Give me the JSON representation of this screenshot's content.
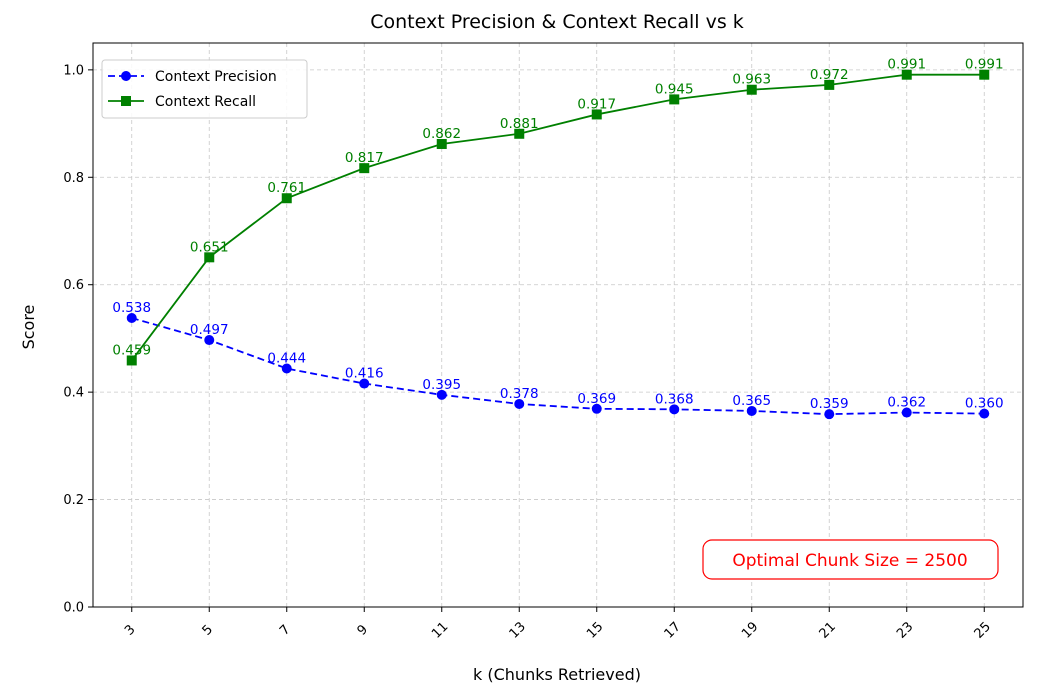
{
  "chart_data": {
    "type": "line",
    "title": "Context Precision & Context Recall vs k",
    "xlabel": "k (Chunks Retrieved)",
    "ylabel": "Score",
    "x": [
      3,
      5,
      7,
      9,
      11,
      13,
      15,
      17,
      19,
      21,
      23,
      25
    ],
    "x_tick_labels": [
      "3",
      "5",
      "7",
      "9",
      "11",
      "13",
      "15",
      "17",
      "19",
      "21",
      "23",
      "25"
    ],
    "y_tick_labels": [
      "0.0",
      "0.2",
      "0.4",
      "0.6",
      "0.8",
      "1.0"
    ],
    "y_ticks": [
      0.0,
      0.2,
      0.4,
      0.6,
      0.8,
      1.0
    ],
    "ylim": [
      0.0,
      1.05
    ],
    "grid": true,
    "legend_position": "top-left",
    "series": [
      {
        "name": "Context Precision",
        "color": "#0000ff",
        "line_style": "dashed",
        "marker": "circle",
        "values": [
          0.538,
          0.497,
          0.444,
          0.416,
          0.395,
          0.378,
          0.369,
          0.368,
          0.365,
          0.359,
          0.362,
          0.36
        ],
        "labels": [
          "0.538",
          "0.497",
          "0.444",
          "0.416",
          "0.395",
          "0.378",
          "0.369",
          "0.368",
          "0.365",
          "0.359",
          "0.362",
          "0.360"
        ]
      },
      {
        "name": "Context Recall",
        "color": "#008000",
        "line_style": "solid",
        "marker": "square",
        "values": [
          0.459,
          0.651,
          0.761,
          0.817,
          0.862,
          0.881,
          0.917,
          0.945,
          0.963,
          0.972,
          0.991,
          0.991
        ],
        "labels": [
          "0.459",
          "0.651",
          "0.761",
          "0.817",
          "0.862",
          "0.881",
          "0.917",
          "0.945",
          "0.963",
          "0.972",
          "0.991",
          "0.991"
        ]
      }
    ],
    "annotation": {
      "text": "Optimal Chunk Size = 2500",
      "color": "#ff0000",
      "position": "bottom-right"
    }
  }
}
